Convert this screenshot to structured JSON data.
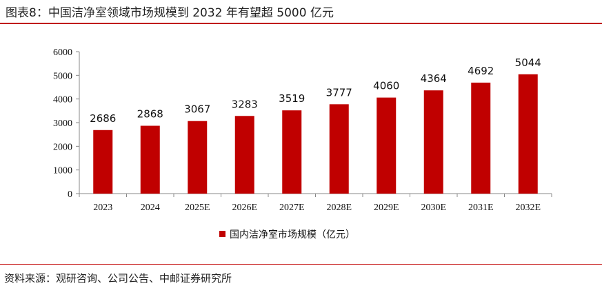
{
  "header": {
    "title": "图表8：中国洁净室领域市场规模到 2032 年有望超 5000 亿元"
  },
  "footer": {
    "source": "资料来源：观研咨询、公司公告、中邮证券研究所"
  },
  "colors": {
    "bar": "#c00000",
    "rule": "#c00000"
  },
  "chart_data": {
    "type": "bar",
    "categories": [
      "2023",
      "2024",
      "2025E",
      "2026E",
      "2027E",
      "2028E",
      "2029E",
      "2030E",
      "2031E",
      "2032E"
    ],
    "series": [
      {
        "name": "国内洁净室市场规模（亿元）",
        "values": [
          2686,
          2868,
          3067,
          3283,
          3519,
          3777,
          4060,
          4364,
          4692,
          5044
        ]
      }
    ],
    "yticks": [
      0,
      1000,
      2000,
      3000,
      4000,
      5000,
      6000
    ],
    "ylim": [
      0,
      6000
    ],
    "grid": false,
    "legend": "bottom-center",
    "data_labels": true
  }
}
